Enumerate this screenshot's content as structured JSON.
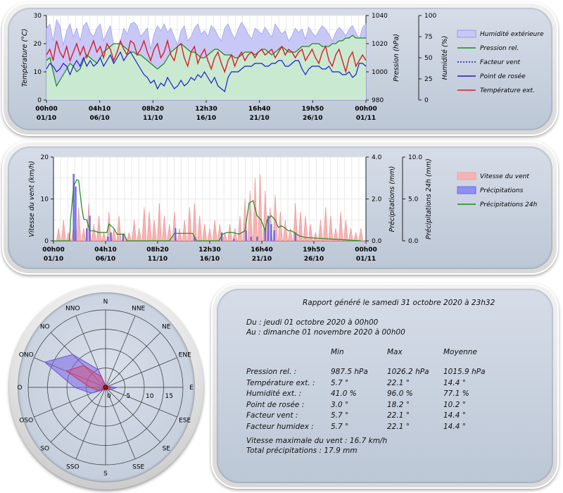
{
  "chart_data": [
    {
      "type": "line",
      "x_ticks": [
        {
          "time": "00h00",
          "date": "01/10"
        },
        {
          "time": "04h10",
          "date": "06/10"
        },
        {
          "time": "08h20",
          "date": "11/10"
        },
        {
          "time": "12h30",
          "date": "16/10"
        },
        {
          "time": "16h40",
          "date": "21/10"
        },
        {
          "time": "19h50",
          "date": "26/10"
        },
        {
          "time": "00h00",
          "date": "01/11"
        }
      ],
      "y_left": {
        "label": "Température (°C)",
        "range": [
          0,
          30
        ],
        "ticks": [
          "0",
          "10",
          "20",
          "30"
        ]
      },
      "y_right1": {
        "label": "Pression (hPa)",
        "range": [
          980,
          1040
        ],
        "ticks": [
          "980",
          "1000",
          "1020",
          "1040"
        ]
      },
      "y_right2": {
        "label": "Humidité (%)",
        "range": [
          0,
          100
        ],
        "ticks": [
          "0",
          "25",
          "50",
          "75",
          "100"
        ]
      },
      "legend": [
        "Humidité extérieure",
        "Pression rel.",
        "Facteur vent",
        "Point de rosée",
        "Température ext."
      ],
      "series": [
        {
          "name": "Humidité extérieure",
          "axis": "humidity",
          "color": "#8888ee",
          "values": [
            85,
            90,
            70,
            95,
            88,
            65,
            82,
            90,
            75,
            85,
            70,
            88,
            92,
            80,
            75,
            85,
            90,
            70,
            80,
            88,
            65,
            55,
            70,
            85,
            78,
            90,
            92,
            88,
            75,
            80,
            85,
            60,
            78,
            88,
            82,
            90,
            80,
            85,
            75,
            65,
            82,
            88,
            70,
            75,
            85,
            90,
            78,
            82,
            75,
            88,
            84,
            76,
            70,
            85,
            90,
            80,
            72,
            84,
            92,
            86,
            78,
            72,
            85,
            82,
            78,
            86,
            80,
            74,
            90,
            84,
            78,
            82,
            70,
            76,
            85,
            80,
            84,
            72,
            86,
            80,
            75,
            82,
            88,
            84,
            78,
            70,
            80,
            86,
            82,
            76,
            84,
            88,
            80,
            72,
            86,
            90
          ]
        },
        {
          "name": "Pression rel.",
          "axis": "pressure",
          "color": "#1a8a1a",
          "values": [
            1008,
            1010,
            1000,
            990,
            994,
            998,
            1002,
            1006,
            1004,
            1000,
            1002,
            1008,
            1012,
            1010,
            1008,
            1006,
            1010,
            1014,
            1016,
            1018,
            1020,
            1020,
            1020,
            1018,
            1016,
            1014,
            1014,
            1012,
            1012,
            1010,
            1008,
            1006,
            1004,
            1002,
            1004,
            1006,
            1010,
            1014,
            1016,
            1018,
            1020,
            1018,
            1016,
            1014,
            1014,
            1012,
            1010,
            1010,
            1012,
            1014,
            1016,
            1016,
            1014,
            1012,
            1012,
            1012,
            1010,
            1010,
            1012,
            1014,
            1014,
            1014,
            1012,
            1014,
            1016,
            1016,
            1014,
            1012,
            1014,
            1016,
            1018,
            1016,
            1014,
            1014,
            1014,
            1016,
            1018,
            1018,
            1018,
            1020,
            1020,
            1020,
            1018,
            1018,
            1018,
            1020,
            1020,
            1022,
            1022,
            1024,
            1024,
            1026,
            1024,
            1024,
            1024,
            1024
          ]
        },
        {
          "name": "Facteur vent",
          "axis": "temperature",
          "color": "#1a1acc",
          "values": []
        },
        {
          "name": "Point de rosée",
          "axis": "temperature",
          "color": "#1a1acc",
          "values": [
            11,
            13,
            12,
            10,
            11,
            13,
            12,
            9,
            12,
            14,
            12,
            15,
            12,
            14,
            12,
            13,
            15,
            12,
            14,
            16,
            13,
            15,
            17,
            14,
            16,
            17,
            15,
            13,
            11,
            9,
            8,
            6,
            7,
            4,
            6,
            5,
            8,
            6,
            4,
            5,
            7,
            5,
            6,
            8,
            7,
            9,
            8,
            10,
            8,
            6,
            8,
            5,
            4,
            3,
            8,
            10,
            10,
            10,
            11,
            12,
            12,
            12,
            13,
            13,
            13,
            12,
            12,
            13,
            13,
            14,
            14,
            12,
            12,
            13,
            14,
            14,
            11,
            9,
            11,
            12,
            12,
            12,
            11,
            11,
            12,
            10,
            10,
            10,
            9,
            9,
            10,
            8,
            9,
            13,
            13,
            12
          ]
        },
        {
          "name": "Température ext.",
          "axis": "temperature",
          "color": "#dd1a2a",
          "values": [
            16,
            18,
            14,
            21,
            17,
            15,
            19,
            14,
            17,
            20,
            16,
            19,
            15,
            18,
            21,
            17,
            19,
            15,
            20,
            18,
            14,
            17,
            21,
            18,
            16,
            21,
            20,
            16,
            18,
            21,
            17,
            14,
            18,
            20,
            15,
            17,
            21,
            16,
            14,
            19,
            20,
            15,
            12,
            17,
            19,
            13,
            16,
            18,
            14,
            11,
            15,
            17,
            13,
            10,
            14,
            16,
            12,
            15,
            17,
            14,
            16,
            17,
            15,
            17,
            18,
            16,
            17,
            18,
            15,
            17,
            19,
            16,
            18,
            17,
            15,
            17,
            18,
            14,
            16,
            18,
            15,
            13,
            17,
            19,
            14,
            12,
            16,
            18,
            14,
            10,
            15,
            17,
            12,
            14,
            16,
            14
          ]
        }
      ]
    },
    {
      "type": "bar",
      "x_ticks": [
        {
          "time": "00h00",
          "date": "01/10"
        },
        {
          "time": "04h10",
          "date": "06/10"
        },
        {
          "time": "08h20",
          "date": "11/10"
        },
        {
          "time": "12h30",
          "date": "16/10"
        },
        {
          "time": "16h40",
          "date": "21/10"
        },
        {
          "time": "19h50",
          "date": "26/10"
        },
        {
          "time": "00h00",
          "date": "01/11"
        }
      ],
      "y_left": {
        "label": "Vitesse du vent (km/h)",
        "range": [
          0,
          20
        ],
        "ticks": [
          "0",
          "10",
          "20"
        ]
      },
      "y_right1": {
        "label": "Précipitations (mm)",
        "range": [
          0,
          4
        ],
        "ticks": [
          "0.0",
          "2.0",
          "4.0"
        ]
      },
      "y_right2": {
        "label": "Précipitations 24h (mm)",
        "range": [
          0,
          10
        ],
        "ticks": [
          "0.0",
          "5.0",
          "10.0"
        ]
      },
      "legend": [
        "Vitesse du vent",
        "Précipitations",
        "Précipitations 24h"
      ],
      "series": [
        {
          "name": "Vitesse du vent",
          "color": "#f4a0a0",
          "x": [
            0.5,
            1,
            1.5,
            2,
            2.5,
            3,
            3.5,
            4,
            4.5,
            5,
            5.5,
            6,
            6.5,
            7,
            7.5,
            8,
            8.5,
            9,
            9.5,
            10,
            10.5,
            11,
            11.5,
            12,
            12.5,
            13,
            13.5,
            14,
            14.5,
            15,
            15.5,
            16,
            16.5,
            17,
            17.5,
            18,
            18.5,
            19,
            19.5,
            20,
            20.5,
            21,
            21.5,
            22,
            22.5,
            23,
            23.5,
            24,
            24.5,
            25,
            25.5,
            26,
            26.5,
            27,
            27.5,
            28,
            28.5,
            29,
            29.5,
            30,
            30.5
          ],
          "values": [
            3,
            5,
            2,
            4,
            8,
            3,
            9,
            4,
            6,
            2,
            7,
            3,
            6,
            2,
            2,
            5,
            3,
            8,
            7,
            5,
            9,
            6,
            4,
            7,
            3,
            5,
            8,
            9,
            6,
            4,
            3,
            5,
            4,
            2,
            4,
            3,
            6,
            10,
            12,
            15,
            16,
            12,
            8,
            11,
            7,
            5,
            3,
            9,
            7,
            6,
            4,
            2,
            5,
            8,
            6,
            3,
            7,
            5,
            3,
            2,
            3
          ]
        },
        {
          "name": "Précipitations",
          "color": "#6a6ae8",
          "x": [
            2.0,
            2.2,
            3.3,
            3.6,
            5.4,
            5.7,
            6.9,
            12.1,
            14.0,
            16.7,
            17.9,
            19.1,
            19.6,
            20.2,
            21.0,
            21.3,
            21.6,
            21.9,
            24.0
          ],
          "values": [
            3.2,
            2.6,
            0.6,
            1.2,
            0.2,
            0.4,
            0.3,
            0.6,
            0.2,
            0.4,
            0.1,
            0.5,
            0.2,
            0.2,
            0.6,
            1.2,
            0.8,
            0.5,
            0.4
          ]
        },
        {
          "name": "Précipitations 24h",
          "color": "#1a8a1a",
          "x": [
            0.0,
            1.6,
            1.7,
            2.0,
            2.3,
            2.5,
            2.8,
            3.0,
            3.3,
            3.6,
            4.0,
            4.5,
            5.3,
            5.5,
            6.0,
            6.3,
            6.5,
            7.0,
            7.3,
            8.0,
            11.5,
            12.0,
            12.5,
            13.8,
            14.2,
            16.4,
            16.8,
            17.2,
            17.8,
            18.4,
            19.0,
            19.4,
            19.8,
            20.2,
            20.6,
            21.0,
            21.2,
            21.6,
            22.0,
            22.3,
            22.6,
            23.0,
            23.3,
            23.6,
            24.0,
            24.4,
            25.0,
            30.5
          ],
          "values": [
            0,
            0,
            2.5,
            6.5,
            7.3,
            7.2,
            4.0,
            2.6,
            2.5,
            1.2,
            1.2,
            1.0,
            1.0,
            2.0,
            1.5,
            0.8,
            0.8,
            0.8,
            0,
            0,
            0,
            0.9,
            0.9,
            0.9,
            0,
            0,
            0.8,
            1.0,
            1.0,
            0.8,
            1.2,
            4.5,
            4.8,
            3.0,
            2.5,
            1.2,
            2.5,
            3.0,
            2.5,
            1.6,
            1.8,
            1.5,
            1.2,
            1.2,
            0.9,
            0.6,
            0.4,
            0
          ]
        }
      ]
    },
    {
      "type": "radar",
      "directions": [
        "N",
        "NNE",
        "NE",
        "ENE",
        "E",
        "ESE",
        "SE",
        "SSE",
        "S",
        "SSO",
        "SO",
        "OSO",
        "O",
        "ONO",
        "NO",
        "NNO"
      ],
      "radial_ticks": [
        "0",
        "5",
        "10",
        "15"
      ],
      "radial_range": [
        0,
        20
      ],
      "series": [
        {
          "name": "max",
          "color": "#6a5acd",
          "values": [
            0.5,
            0.5,
            0.5,
            0.6,
            3.0,
            1.5,
            1.0,
            0.5,
            0.6,
            0.7,
            1.0,
            4.0,
            8.0,
            17.0,
            12.0,
            5.0
          ]
        },
        {
          "name": "avg",
          "color": "#cc3366",
          "values": [
            0.3,
            0.3,
            0.3,
            0.3,
            1.5,
            1.0,
            0.6,
            0.3,
            0.3,
            0.4,
            0.6,
            2.0,
            4.0,
            11.0,
            8.0,
            3.0
          ]
        }
      ]
    }
  ],
  "report": {
    "title": "Rapport généré le samedi 31 octobre 2020 à 23h32",
    "from": "Du : jeudi 01 octobre 2020 à 00h00",
    "to": "Au : dimanche 01 novembre 2020 à 00h00",
    "headers": [
      "Min",
      "Max",
      "Moyenne"
    ],
    "rows": [
      {
        "label": "Pression rel. :",
        "min": "987.5 hPa",
        "max": "1026.2 hPa",
        "avg": "1015.9 hPa"
      },
      {
        "label": "Température ext. :",
        "min": "5.7 °",
        "max": "22.1 °",
        "avg": "14.4 °"
      },
      {
        "label": "Humidité ext. :",
        "min": "41.0 %",
        "max": "96.0 %",
        "avg": "77.1 %"
      },
      {
        "label": "Point de rosée :",
        "min": "3.0 °",
        "max": "18.2 °",
        "avg": "10.2 °"
      },
      {
        "label": "Facteur vent :",
        "min": "5.7 °",
        "max": "22.1 °",
        "avg": "14.4 °"
      },
      {
        "label": "Facteur humidex :",
        "min": "5.7 °",
        "max": "22.1 °",
        "avg": "14.4 °"
      }
    ],
    "max_wind": "Vitesse maximale du vent : 16.7 km/h",
    "total_rain": "Total précipitations : 17.9 mm"
  }
}
